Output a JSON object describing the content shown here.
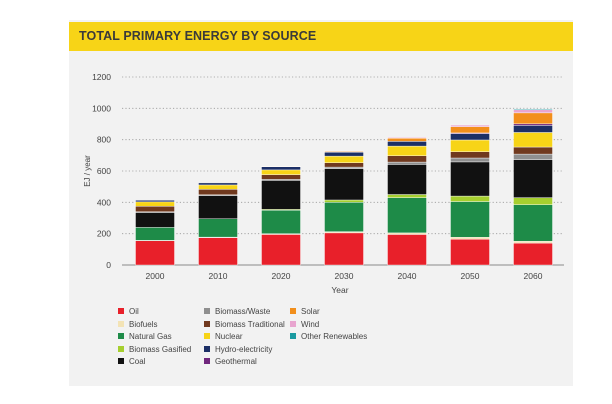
{
  "title": "TOTAL PRIMARY ENERGY BY SOURCE",
  "chart_data": {
    "type": "bar",
    "stacked": true,
    "xlabel": "Year",
    "ylabel": "EJ / year",
    "ylim": [
      0,
      1200
    ],
    "yticks": [
      "0",
      "200",
      "400",
      "600",
      "800",
      "1000",
      "1200"
    ],
    "grid": true,
    "categories": [
      "2000",
      "2010",
      "2020",
      "2030",
      "2040",
      "2050",
      "2060"
    ],
    "series": [
      {
        "name": "Oil",
        "color": "#e8202a",
        "values": [
          155,
          175,
          195,
          205,
          195,
          165,
          140
        ]
      },
      {
        "name": "Biofuels",
        "color": "#f3e3b5",
        "values": [
          2,
          3,
          5,
          8,
          10,
          12,
          12
        ]
      },
      {
        "name": "Natural Gas",
        "color": "#1e8b48",
        "values": [
          83,
          117,
          150,
          187,
          225,
          228,
          233
        ]
      },
      {
        "name": "Biomass Gasified",
        "color": "#a6cf2f",
        "values": [
          0,
          0,
          5,
          15,
          20,
          35,
          45
        ]
      },
      {
        "name": "Coal",
        "color": "#111111",
        "values": [
          95,
          148,
          185,
          200,
          192,
          218,
          243
        ]
      },
      {
        "name": "Biomass/Waste",
        "color": "#8f8f8f",
        "values": [
          5,
          5,
          7,
          10,
          15,
          25,
          35
        ]
      },
      {
        "name": "Biomass Traditional",
        "color": "#70391e",
        "values": [
          35,
          35,
          30,
          28,
          40,
          40,
          45
        ]
      },
      {
        "name": "Nuclear",
        "color": "#f7d417",
        "values": [
          28,
          28,
          30,
          42,
          62,
          75,
          93
        ]
      },
      {
        "name": "Hydro-electricity",
        "color": "#1c2f66",
        "values": [
          10,
          13,
          20,
          25,
          30,
          40,
          45
        ]
      },
      {
        "name": "Geothermal",
        "color": "#70277d",
        "values": [
          0,
          0,
          0,
          0,
          0,
          5,
          10
        ]
      },
      {
        "name": "Solar",
        "color": "#f28f1c",
        "values": [
          0,
          0,
          2,
          5,
          20,
          40,
          70
        ]
      },
      {
        "name": "Wind",
        "color": "#e8a5cf",
        "values": [
          0,
          0,
          2,
          3,
          5,
          10,
          20
        ]
      },
      {
        "name": "Other Renewables",
        "color": "#1a9aa0",
        "values": [
          0,
          0,
          0,
          0,
          0,
          0,
          5
        ]
      }
    ]
  }
}
